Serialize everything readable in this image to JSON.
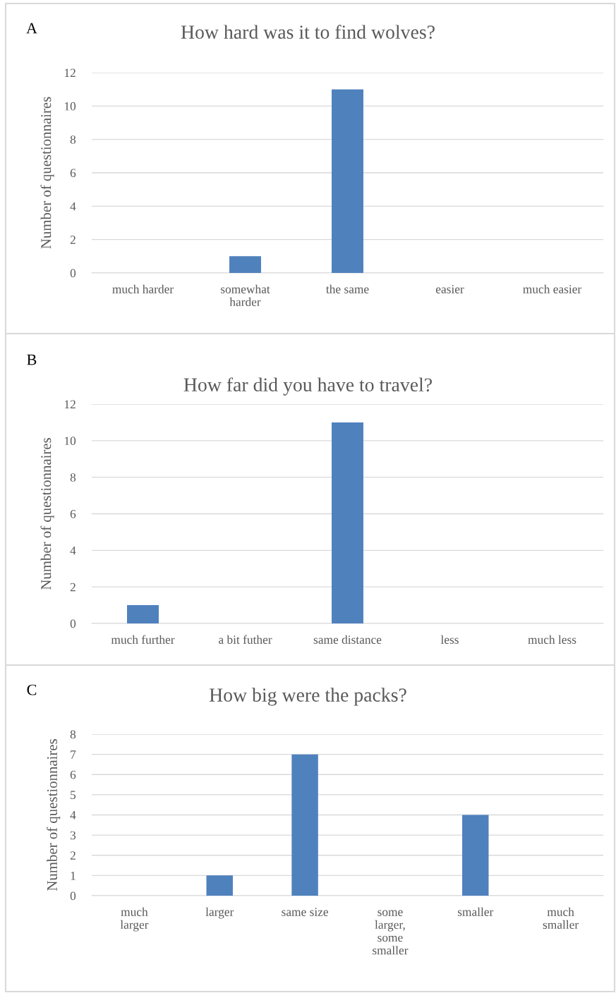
{
  "chart_data": [
    {
      "type": "bar",
      "title": "How hard was it to find wolves?",
      "ylabel": "Number of questionnaires",
      "annotations": [
        "A"
      ],
      "categories": [
        "much harder",
        "somewhat\nharder",
        "the same",
        "easier",
        "much easier"
      ],
      "values": [
        0,
        1,
        11,
        0,
        0
      ],
      "color": "#4f81bd",
      "ylim": [
        0,
        12
      ],
      "yticks": [
        0,
        2,
        4,
        6,
        8,
        10,
        12
      ],
      "grid": "y",
      "legend": false
    },
    {
      "type": "bar",
      "title": "How far did you have to travel?",
      "ylabel": "Number of questionnaires",
      "annotations": [
        "B"
      ],
      "categories": [
        "much further",
        "a bit futher",
        "same distance",
        "less",
        "much less"
      ],
      "values": [
        1,
        0,
        11,
        0,
        0
      ],
      "color": "#4f81bd",
      "ylim": [
        0,
        12
      ],
      "yticks": [
        0,
        2,
        4,
        6,
        8,
        10,
        12
      ],
      "grid": "y",
      "legend": false
    },
    {
      "type": "bar",
      "title": "How big were the packs?",
      "ylabel": "Number of questionnaires",
      "annotations": [
        "C"
      ],
      "categories": [
        "much\nlarger",
        "larger",
        "same size",
        "some\nlarger,\nsome\nsmaller",
        "smaller",
        "much\nsmaller"
      ],
      "values": [
        0,
        1,
        7,
        0,
        4,
        0
      ],
      "color": "#4f81bd",
      "ylim": [
        0,
        8
      ],
      "yticks": [
        0,
        1,
        2,
        3,
        4,
        5,
        6,
        7,
        8
      ],
      "grid": "y",
      "legend": false
    }
  ]
}
